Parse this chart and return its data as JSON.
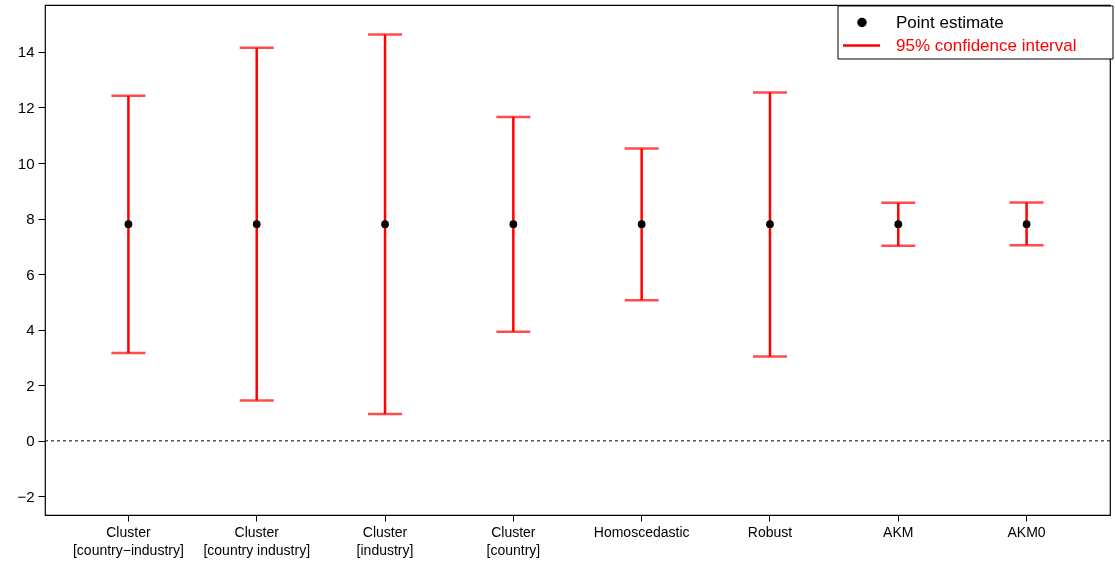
{
  "chart_data": {
    "type": "scatter",
    "categories": [
      "Cluster\n[country−industry]",
      "Cluster\n[country industry]",
      "Cluster\n[industry]",
      "Cluster\n[country]",
      "Homoscedastic",
      "Robust",
      "AKM",
      "AKM0"
    ],
    "series": [
      {
        "name": "Point estimate",
        "color": "#000000",
        "marker": "circle",
        "values": [
          7.8,
          7.8,
          7.8,
          7.8,
          7.8,
          7.8,
          7.8,
          7.8
        ],
        "errors": [
          [
            3.16,
            12.42
          ],
          [
            1.45,
            14.15
          ],
          [
            0.97,
            14.63
          ],
          [
            3.93,
            11.66
          ],
          [
            5.06,
            10.52
          ],
          [
            3.04,
            12.54
          ],
          [
            7.02,
            8.57
          ],
          [
            7.04,
            8.58
          ]
        ]
      },
      {
        "name": "95% confidence interval",
        "color": "#ff0000",
        "type": "line",
        "values": [
          null,
          null,
          null,
          null,
          null,
          null,
          null,
          null
        ]
      }
    ],
    "ylim": [
      -2.67,
      15.69
    ],
    "yticks": [
      -2,
      0,
      2,
      4,
      6,
      8,
      10,
      12,
      14
    ],
    "ref_lines": [
      {
        "axis": "y",
        "value": 0,
        "color": "#000000",
        "line_style": "dashed"
      }
    ],
    "legend": "top right",
    "grid": false
  }
}
